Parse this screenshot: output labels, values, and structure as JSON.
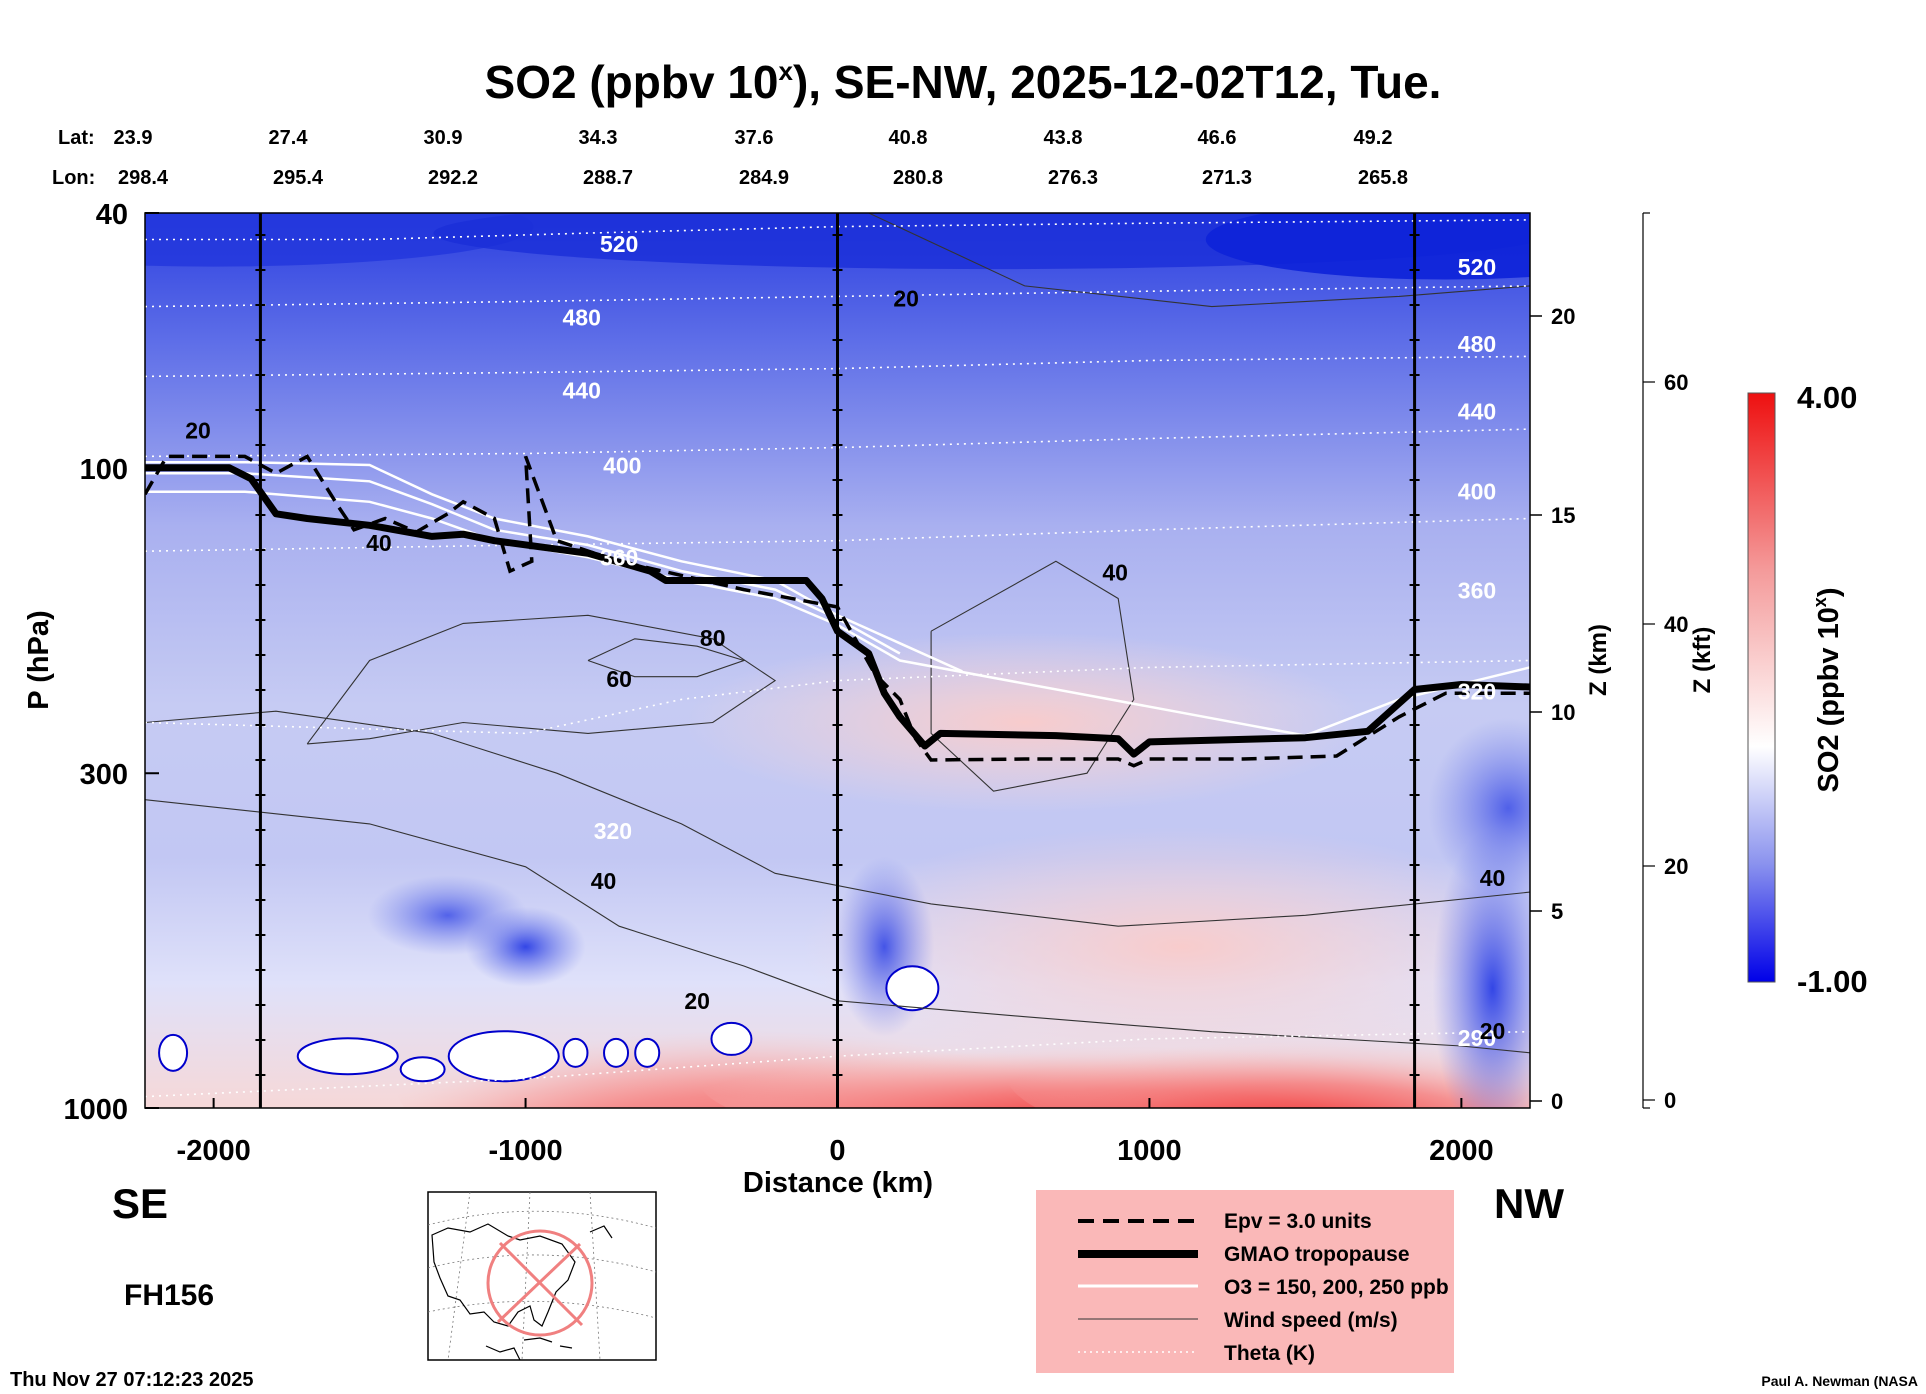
{
  "chart_data": {
    "type": "heatmap",
    "title_main": "SO2 (ppbv 10",
    "title_sup": "x",
    "title_rest": "), SE-NW, 2025-12-02T12, Tue.",
    "xlabel": "Distance (km)",
    "ylabel": "P (hPa)",
    "y2label": "Z (km)",
    "y3label": "Z (kft)",
    "xlim": [
      -2220,
      2220
    ],
    "x_ticks": [
      -2000,
      -1000,
      0,
      1000,
      2000
    ],
    "x_tick_labels": [
      "-2000",
      "-1000",
      "0",
      "1000",
      "2000"
    ],
    "ylim_hpa": [
      1000,
      40
    ],
    "y_ticks": [
      40,
      100,
      300,
      1000
    ],
    "y_tick_labels": [
      "40",
      "100",
      "300",
      "1000"
    ],
    "z_km_ticks": [
      0,
      5,
      10,
      15,
      20
    ],
    "z_km_labels": [
      "0",
      "5",
      "10",
      "15",
      "20"
    ],
    "z_kft_ticks": [
      0,
      20,
      40,
      60
    ],
    "z_kft_labels": [
      "0",
      "20",
      "40",
      "60"
    ],
    "vertical_lines_km": [
      -1850,
      0,
      1850
    ],
    "lat_label": "Lat:",
    "lon_label": "Lon:",
    "lat_values": [
      "23.9",
      "27.4",
      "30.9",
      "34.3",
      "37.6",
      "40.8",
      "43.8",
      "46.6",
      "49.2"
    ],
    "lon_values": [
      "298.4",
      "295.4",
      "292.2",
      "288.7",
      "284.9",
      "280.8",
      "276.3",
      "271.3",
      "265.8"
    ],
    "colorbar": {
      "label_main": "SO2 (ppbv 10",
      "label_sup": "x",
      "label_rest": ")",
      "min": -1.0,
      "max": 4.0,
      "min_label": "-1.00",
      "max_label": "4.00",
      "low_color": "#0000ee",
      "mid_color": "#ffffff",
      "high_color": "#ee0000"
    },
    "theta_contours_K": [
      {
        "value": 520,
        "label": "520",
        "pts": [
          [
            -2220,
            44
          ],
          [
            -1500,
            44
          ],
          [
            -800,
            43
          ],
          [
            0,
            42
          ],
          [
            1000,
            41.5
          ],
          [
            2220,
            41
          ]
        ]
      },
      {
        "value": 480,
        "label": "480",
        "pts": [
          [
            -2220,
            56
          ],
          [
            -1000,
            55
          ],
          [
            0,
            54
          ],
          [
            1000,
            53
          ],
          [
            2220,
            52
          ]
        ]
      },
      {
        "value": 440,
        "label": "440",
        "pts": [
          [
            -2220,
            72
          ],
          [
            -1000,
            71
          ],
          [
            0,
            70
          ],
          [
            1000,
            68
          ],
          [
            2220,
            67
          ]
        ]
      },
      {
        "value": 400,
        "label": "400",
        "pts": [
          [
            -2220,
            96
          ],
          [
            -1000,
            95
          ],
          [
            0,
            93
          ],
          [
            1000,
            90
          ],
          [
            2220,
            87
          ]
        ]
      },
      {
        "value": 360,
        "label": "360",
        "pts": [
          [
            -2220,
            135
          ],
          [
            -1000,
            132
          ],
          [
            0,
            130
          ],
          [
            1000,
            125
          ],
          [
            2220,
            120
          ]
        ]
      },
      {
        "value": 320,
        "label": "320",
        "pts": [
          [
            -2220,
            250
          ],
          [
            -1000,
            260
          ],
          [
            -500,
            230
          ],
          [
            0,
            215
          ],
          [
            1000,
            205
          ],
          [
            2220,
            200
          ]
        ]
      },
      {
        "value": 290,
        "label": "290",
        "pts": [
          [
            -2220,
            960
          ],
          [
            -1000,
            900
          ],
          [
            0,
            830
          ],
          [
            1000,
            780
          ],
          [
            2220,
            760
          ]
        ]
      }
    ],
    "theta_label_pos": [
      [
        -700,
        46
      ],
      [
        -820,
        60
      ],
      [
        -820,
        78
      ],
      [
        -690,
        102
      ],
      [
        -700,
        142
      ],
      [
        -720,
        380
      ],
      [
        2050,
        800
      ],
      [
        2050,
        50
      ],
      [
        2050,
        66
      ],
      [
        2050,
        84
      ],
      [
        2050,
        112
      ],
      [
        2050,
        160
      ],
      [
        2050,
        230
      ]
    ],
    "theta_label_text": [
      "520",
      "480",
      "440",
      "400",
      "360",
      "320",
      "290",
      "520",
      "480",
      "440",
      "400",
      "360",
      "320"
    ],
    "wind_contours_ms": [
      {
        "value": 20,
        "label": "20",
        "pts": [
          [
            -2220,
            330
          ],
          [
            -1500,
            360
          ],
          [
            -1000,
            420
          ],
          [
            -700,
            520
          ],
          [
            -300,
            600
          ],
          [
            0,
            680
          ],
          [
            600,
            720
          ],
          [
            1200,
            760
          ],
          [
            2000,
            800
          ],
          [
            2220,
            820
          ]
        ]
      },
      {
        "value": 40,
        "label": "40",
        "pts": [
          [
            -2220,
            250
          ],
          [
            -1800,
            240
          ],
          [
            -1300,
            260
          ],
          [
            -900,
            300
          ],
          [
            -500,
            360
          ],
          [
            -200,
            430
          ],
          [
            300,
            480
          ],
          [
            900,
            520
          ],
          [
            1500,
            500
          ],
          [
            2220,
            460
          ]
        ]
      },
      {
        "value": 60,
        "label": "60",
        "pts": [
          [
            -1700,
            270
          ],
          [
            -1500,
            200
          ],
          [
            -1200,
            175
          ],
          [
            -800,
            170
          ],
          [
            -400,
            185
          ],
          [
            -200,
            215
          ],
          [
            -400,
            250
          ],
          [
            -800,
            260
          ],
          [
            -1200,
            250
          ],
          [
            -1500,
            265
          ],
          [
            -1700,
            270
          ]
        ]
      },
      {
        "value": 80,
        "label": "80",
        "pts": [
          [
            -800,
            200
          ],
          [
            -650,
            185
          ],
          [
            -450,
            190
          ],
          [
            -300,
            200
          ],
          [
            -450,
            212
          ],
          [
            -650,
            212
          ],
          [
            -800,
            200
          ]
        ]
      },
      {
        "value": 20,
        "label": "20",
        "pts": [
          [
            100,
            40
          ],
          [
            600,
            52
          ],
          [
            1200,
            56
          ],
          [
            1800,
            54
          ],
          [
            2220,
            52
          ]
        ]
      },
      {
        "value": 40,
        "label": "40",
        "pts": [
          [
            300,
            180
          ],
          [
            700,
            140
          ],
          [
            900,
            160
          ],
          [
            950,
            230
          ],
          [
            800,
            300
          ],
          [
            500,
            320
          ],
          [
            300,
            260
          ],
          [
            300,
            180
          ]
        ]
      }
    ],
    "wind_label_pos": [
      [
        -2050,
        90
      ],
      [
        -1470,
        135
      ],
      [
        -700,
        220
      ],
      [
        -400,
        190
      ],
      [
        -750,
        455
      ],
      [
        -450,
        700
      ],
      [
        220,
        56
      ],
      [
        890,
        150
      ],
      [
        2100,
        450
      ],
      [
        2100,
        780
      ]
    ],
    "wind_label_text": [
      "20",
      "40",
      "60",
      "80",
      "40",
      "20",
      "20",
      "40",
      "40",
      "20"
    ],
    "tropopause_gmao": [
      [
        -2220,
        100
      ],
      [
        -1950,
        100
      ],
      [
        -1880,
        104
      ],
      [
        -1800,
        118
      ],
      [
        -1700,
        120
      ],
      [
        -1500,
        123
      ],
      [
        -1300,
        128
      ],
      [
        -1200,
        127
      ],
      [
        -1100,
        130
      ],
      [
        -800,
        136
      ],
      [
        -600,
        145
      ],
      [
        -550,
        150
      ],
      [
        -100,
        150
      ],
      [
        -50,
        160
      ],
      [
        0,
        180
      ],
      [
        100,
        195
      ],
      [
        150,
        225
      ],
      [
        200,
        245
      ],
      [
        280,
        272
      ],
      [
        330,
        260
      ],
      [
        700,
        262
      ],
      [
        900,
        265
      ],
      [
        950,
        280
      ],
      [
        1000,
        268
      ],
      [
        1500,
        264
      ],
      [
        1700,
        258
      ],
      [
        1850,
        222
      ],
      [
        2000,
        218
      ],
      [
        2220,
        220
      ]
    ],
    "epv3": [
      [
        -2220,
        110
      ],
      [
        -2150,
        96
      ],
      [
        -2000,
        96
      ],
      [
        -1900,
        96
      ],
      [
        -1800,
        102
      ],
      [
        -1700,
        96
      ],
      [
        -1600,
        115
      ],
      [
        -1550,
        125
      ],
      [
        -1450,
        120
      ],
      [
        -1350,
        126
      ],
      [
        -1250,
        118
      ],
      [
        -1200,
        113
      ],
      [
        -1100,
        120
      ],
      [
        -1050,
        145
      ],
      [
        -980,
        140
      ],
      [
        -1000,
        96
      ],
      [
        -900,
        130
      ],
      [
        -700,
        140
      ],
      [
        -300,
        155
      ],
      [
        0,
        165
      ],
      [
        120,
        210
      ],
      [
        200,
        230
      ],
      [
        250,
        265
      ],
      [
        300,
        286
      ],
      [
        600,
        285
      ],
      [
        900,
        285
      ],
      [
        950,
        292
      ],
      [
        1000,
        285
      ],
      [
        1300,
        285
      ],
      [
        1600,
        282
      ],
      [
        1800,
        245
      ],
      [
        1950,
        225
      ],
      [
        2220,
        225
      ]
    ],
    "o3_150": [
      [
        -2220,
        98
      ],
      [
        -1900,
        98
      ],
      [
        -1500,
        99
      ],
      [
        -1300,
        110
      ],
      [
        -1100,
        120
      ],
      [
        -800,
        128
      ],
      [
        -500,
        140
      ],
      [
        -200,
        150
      ],
      [
        0,
        170
      ],
      [
        200,
        188
      ],
      [
        400,
        208
      ]
    ],
    "o3_200": [
      [
        -2220,
        102
      ],
      [
        -1900,
        102
      ],
      [
        -1500,
        105
      ],
      [
        -1300,
        114
      ],
      [
        -1100,
        125
      ],
      [
        -800,
        132
      ],
      [
        -500,
        145
      ],
      [
        -200,
        155
      ],
      [
        0,
        172
      ],
      [
        200,
        195
      ]
    ],
    "o3_250": [
      [
        -2220,
        109
      ],
      [
        -1900,
        109
      ],
      [
        -1500,
        113
      ],
      [
        -1300,
        120
      ],
      [
        -1100,
        130
      ],
      [
        -800,
        138
      ],
      [
        -500,
        150
      ],
      [
        -200,
        160
      ],
      [
        0,
        176
      ],
      [
        200,
        200
      ],
      [
        1500,
        262
      ],
      [
        1800,
        230
      ],
      [
        2220,
        205
      ]
    ],
    "legend": {
      "entries": [
        "Epv = 3.0 units",
        "GMAO tropopause",
        "O3 = 150, 200, 250 ppb",
        "Wind speed (m/s)",
        "Theta (K)"
      ]
    },
    "legend_bg": "#fab8b8",
    "dir_left": "SE",
    "dir_right": "NW",
    "forecast_hour": "FH156",
    "timestamp": "Thu Nov 27 07:12:23 2025",
    "credit": "Paul A. Newman (NASA"
  }
}
